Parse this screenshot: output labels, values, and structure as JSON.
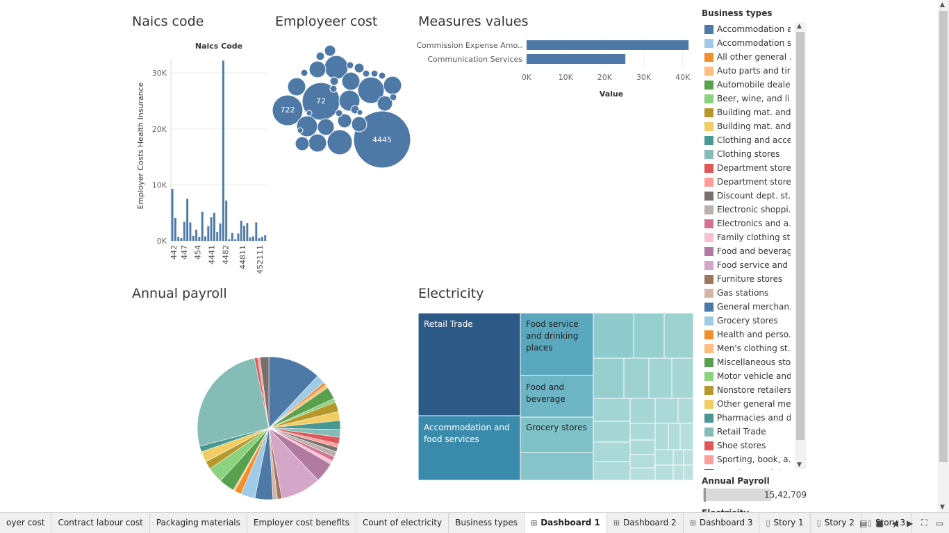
{
  "titles": {
    "naics": "Naics code",
    "employer_cost": "Employeer cost",
    "measures": "Measures values",
    "annual_payroll": "Annual payroll",
    "electricity": "Electricity"
  },
  "naics_chart": {
    "chart_data": {
      "type": "bar",
      "title": "Naics Code",
      "ylabel": "Employer Costs Health Insurance",
      "ylim": [
        0,
        32500
      ],
      "yticks": [
        "0K",
        "10K",
        "20K",
        "30K"
      ],
      "xticks": [
        "442",
        "447",
        "454",
        "4441",
        "4482",
        "44811",
        "452111"
      ],
      "values": [
        9300,
        4100,
        700,
        500,
        3400,
        7500,
        3300,
        900,
        2000,
        700,
        5200,
        800,
        2600,
        4200,
        5000,
        1600,
        3100,
        32200,
        7200,
        300,
        1400,
        300,
        1300,
        3600,
        2700,
        3200,
        600,
        800,
        3300,
        500,
        700,
        1000
      ]
    }
  },
  "employer_cost_bubbles": {
    "chart_data": {
      "type": "scatter",
      "labels": [
        "4445",
        "722",
        "72"
      ],
      "values": [
        4445,
        722,
        72
      ]
    }
  },
  "measures_chart": {
    "chart_data": {
      "type": "bar",
      "orientation": "horizontal",
      "categories": [
        "Commission Expense Amo..",
        "Communication Services"
      ],
      "values": [
        41500,
        25300
      ],
      "xlabel": "Value",
      "xlim": [
        0,
        42000
      ],
      "xticks": [
        "0K",
        "10K",
        "20K",
        "30K",
        "40K"
      ]
    }
  },
  "legend": {
    "title": "Business types",
    "items": [
      {
        "label": "Accommodation a..",
        "color": "#4e79a7"
      },
      {
        "label": "Accommodation s..",
        "color": "#a0cbe8"
      },
      {
        "label": "All other general ..",
        "color": "#f28e2b"
      },
      {
        "label": "Auto parts and tir..",
        "color": "#ffbe7d"
      },
      {
        "label": "Automobile deale..",
        "color": "#59a14f"
      },
      {
        "label": "Beer, wine, and li..",
        "color": "#8cd17d"
      },
      {
        "label": "Building mat. and..",
        "color": "#b6992d"
      },
      {
        "label": "Building mat. and..",
        "color": "#f1ce63"
      },
      {
        "label": "Clothing and acce..",
        "color": "#499894"
      },
      {
        "label": "Clothing stores",
        "color": "#86bcb6"
      },
      {
        "label": "Department stores",
        "color": "#e15759"
      },
      {
        "label": "Department store..",
        "color": "#ff9d9a"
      },
      {
        "label": "Discount dept. st..",
        "color": "#79706e"
      },
      {
        "label": "Electronic shoppi..",
        "color": "#bab0ac"
      },
      {
        "label": "Electronics and a..",
        "color": "#d37295"
      },
      {
        "label": "Family clothing st..",
        "color": "#fabfd2"
      },
      {
        "label": "Food and beverag..",
        "color": "#b07aa1"
      },
      {
        "label": "Food service and ..",
        "color": "#d4a6c8"
      },
      {
        "label": "Furniture stores",
        "color": "#9d7660"
      },
      {
        "label": "Gas stations",
        "color": "#d7b5a6"
      },
      {
        "label": "General merchan..",
        "color": "#4e79a7"
      },
      {
        "label": "Grocery stores",
        "color": "#a0cbe8"
      },
      {
        "label": "Health and perso..",
        "color": "#f28e2b"
      },
      {
        "label": "Men's clothing st..",
        "color": "#ffbe7d"
      },
      {
        "label": "Miscellaneous sto..",
        "color": "#59a14f"
      },
      {
        "label": "Motor vehicle and..",
        "color": "#8cd17d"
      },
      {
        "label": "Nonstore retailers",
        "color": "#b6992d"
      },
      {
        "label": "Other general me..",
        "color": "#f1ce63"
      },
      {
        "label": "Pharmacies and d..",
        "color": "#499894"
      },
      {
        "label": "Retail Trade",
        "color": "#86bcb6"
      },
      {
        "label": "Shoe stores",
        "color": "#e15759"
      },
      {
        "label": "Sporting, book, a..",
        "color": "#ff9d9a"
      },
      {
        "label": "Warehouse clubs",
        "color": "#79706e"
      }
    ]
  },
  "pie_chart": {
    "chart_data": {
      "type": "pie",
      "slices": [
        {
          "value": 11.8,
          "color": "#4e79a7"
        },
        {
          "value": 2.0,
          "color": "#a0cbe8"
        },
        {
          "value": 0.7,
          "color": "#f28e2b"
        },
        {
          "value": 0.7,
          "color": "#ffbe7d"
        },
        {
          "value": 2.8,
          "color": "#59a14f"
        },
        {
          "value": 0.8,
          "color": "#8cd17d"
        },
        {
          "value": 2.2,
          "color": "#b6992d"
        },
        {
          "value": 2.0,
          "color": "#f1ce63"
        },
        {
          "value": 2.0,
          "color": "#499894"
        },
        {
          "value": 1.7,
          "color": "#86bcb6"
        },
        {
          "value": 1.5,
          "color": "#e15759"
        },
        {
          "value": 0.8,
          "color": "#ff9d9a"
        },
        {
          "value": 1.0,
          "color": "#79706e"
        },
        {
          "value": 1.2,
          "color": "#bab0ac"
        },
        {
          "value": 1.0,
          "color": "#d37295"
        },
        {
          "value": 0.8,
          "color": "#fabfd2"
        },
        {
          "value": 4.5,
          "color": "#b07aa1"
        },
        {
          "value": 9.0,
          "color": "#d4a6c8"
        },
        {
          "value": 1.0,
          "color": "#9d7660"
        },
        {
          "value": 1.0,
          "color": "#d7b5a6"
        },
        {
          "value": 4.0,
          "color": "#4e79a7"
        },
        {
          "value": 3.2,
          "color": "#a0cbe8"
        },
        {
          "value": 1.5,
          "color": "#f28e2b"
        },
        {
          "value": 0.4,
          "color": "#ffbe7d"
        },
        {
          "value": 3.5,
          "color": "#59a14f"
        },
        {
          "value": 3.5,
          "color": "#8cd17d"
        },
        {
          "value": 1.8,
          "color": "#b6992d"
        },
        {
          "value": 2.4,
          "color": "#f1ce63"
        },
        {
          "value": 1.3,
          "color": "#499894"
        },
        {
          "value": 25.5,
          "color": "#86bcb6"
        },
        {
          "value": 0.7,
          "color": "#e15759"
        },
        {
          "value": 0.5,
          "color": "#ff9d9a"
        },
        {
          "value": 2.0,
          "color": "#79706e"
        }
      ]
    }
  },
  "treemap": {
    "labels": {
      "retail": "Retail Trade",
      "food_service": "Food service and drinking places",
      "food_bev": "Food and beverage",
      "accommodation": "Accommodation and food services",
      "grocery": "Grocery stores"
    },
    "colors": {
      "retail": "#2d5986",
      "accommodation": "#3a8aac",
      "food_service": "#5aa8bd",
      "food_bev": "#6db5c5",
      "grocery": "#7fc2c8"
    }
  },
  "filters": {
    "annual_payroll_label": "Annual Payroll",
    "annual_payroll_value": "15,42,709",
    "next_label": "Electricity"
  },
  "tabs": [
    {
      "label": "oyer cost",
      "icon": "",
      "active": false
    },
    {
      "label": "Contract labour cost",
      "icon": "",
      "active": false
    },
    {
      "label": "Packaging materials",
      "icon": "",
      "active": false
    },
    {
      "label": "Employer cost benefits",
      "icon": "",
      "active": false
    },
    {
      "label": "Count of electricity",
      "icon": "",
      "active": false
    },
    {
      "label": "Business types",
      "icon": "",
      "active": false
    },
    {
      "label": "Dashboard 1",
      "icon": "dashboard-icon",
      "active": true
    },
    {
      "label": "Dashboard 2",
      "icon": "dashboard-icon",
      "active": false
    },
    {
      "label": "Dashboard 3",
      "icon": "dashboard-icon",
      "active": false
    },
    {
      "label": "Story 1",
      "icon": "story-icon",
      "active": false
    },
    {
      "label": "Story 2",
      "icon": "story-icon",
      "active": false
    },
    {
      "label": "Story 3",
      "icon": "story-icon",
      "active": false
    }
  ]
}
